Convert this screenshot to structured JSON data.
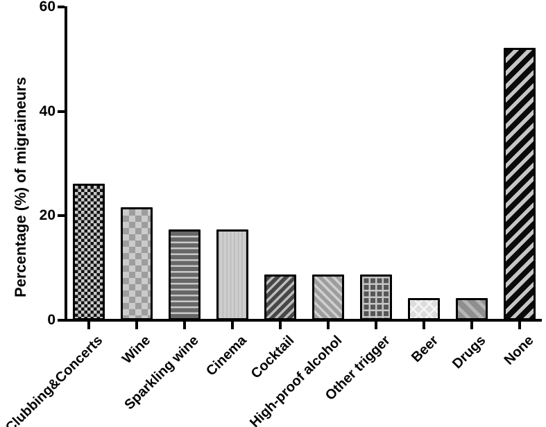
{
  "chart_data": {
    "type": "bar",
    "title": "",
    "xlabel": "",
    "ylabel": "Percentage (%) of migraineurs",
    "ylim": [
      0,
      60
    ],
    "yticks": [
      0,
      20,
      40,
      60
    ],
    "grid": false,
    "legend": "none",
    "categories": [
      "Clubbing&Concerts",
      "Wine",
      "Sparkling wine",
      "Cinema",
      "Cocktail",
      "High-proof alcohol",
      "Other trigger",
      "Beer",
      "Drugs",
      "None"
    ],
    "values": [
      26.1,
      21.7,
      17.4,
      17.4,
      8.7,
      8.7,
      8.7,
      4.3,
      4.3,
      52.2
    ],
    "bar_patterns": [
      "checkerboard-fine-black",
      "checkerboard-coarse-gray",
      "horizontal-stripes-dark",
      "vertical-stripes-light",
      "diagonal-up-dark",
      "diagonal-down-medium",
      "grid-dark",
      "diagonal-bricks-light",
      "diagonal-down-wide-gray",
      "diagonal-up-black"
    ],
    "colors": {
      "axis": "#000000",
      "text": "#000000",
      "background": "#ffffff",
      "pattern_dark": "#111111",
      "pattern_light": "#c9c9c9"
    }
  }
}
